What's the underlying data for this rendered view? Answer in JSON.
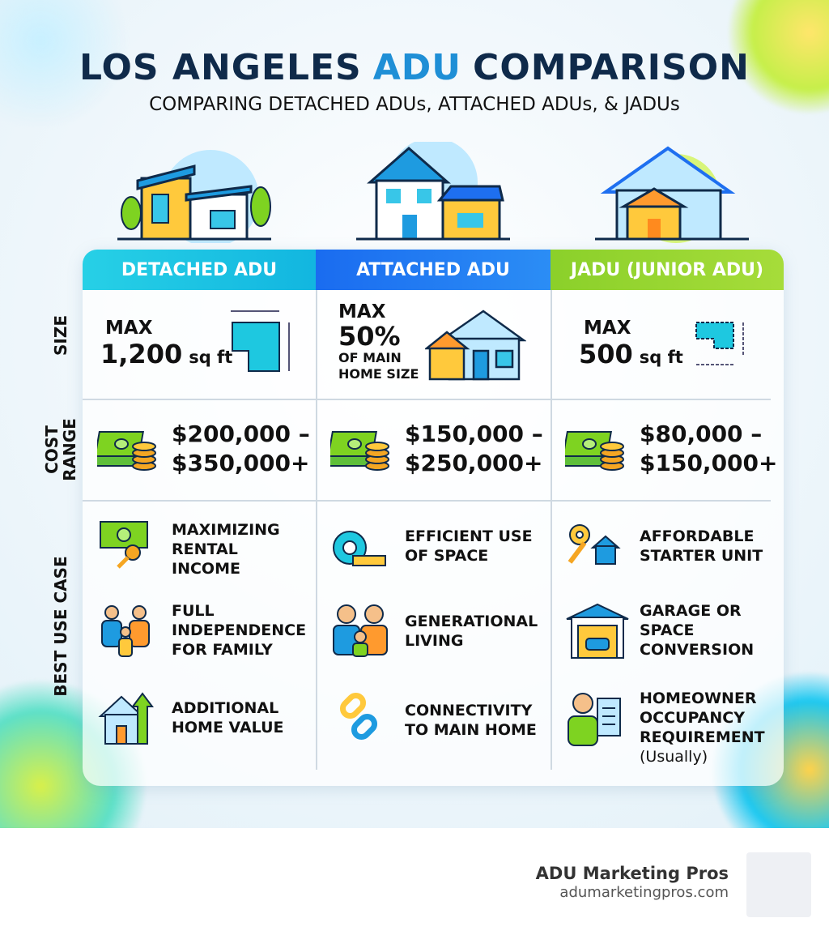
{
  "header": {
    "title": [
      "LOS ANGELES",
      "ADU",
      "COMPARISON"
    ],
    "subtitle": "COMPARING DETACHED ADUs, ATTACHED ADUs, & JADUs"
  },
  "table": {
    "columns": [
      "DETACHED ADU",
      "ATTACHED ADU",
      "JADU (JUNIOR ADU)"
    ],
    "row_labels": [
      "SIZE",
      "COST RANGE",
      "BEST USE CASE"
    ],
    "size": [
      {
        "lead": "MAX",
        "value": "1,200",
        "unit": "sq ft"
      },
      {
        "lead": "MAX",
        "value": "50%",
        "note": "OF MAIN HOME SIZE"
      },
      {
        "lead": "MAX",
        "value": "500",
        "unit": "sq ft"
      }
    ],
    "cost": [
      [
        "$200,000 –",
        "$350,000+"
      ],
      [
        "$150,000 –",
        "$250,000+"
      ],
      [
        "$80,000 –",
        "$150,000+"
      ]
    ],
    "use_cases": [
      [
        {
          "text": "MAXIMIZING RENTAL INCOME"
        },
        {
          "text": "FULL INDEPENDENCE FOR FAMILY"
        },
        {
          "text": "ADDITIONAL HOME VALUE"
        }
      ],
      [
        {
          "text": "EFFICIENT USE OF SPACE"
        },
        {
          "text": "GENERATIONAL LIVING"
        },
        {
          "text": "CONNECTIVITY TO MAIN HOME"
        }
      ],
      [
        {
          "text": "AFFORDABLE STARTER UNIT"
        },
        {
          "text": "GARAGE OR SPACE CONVERSION"
        },
        {
          "text": "HOMEOWNER OCCUPANCY REQUIREMENT",
          "note": "(Usually)"
        }
      ]
    ]
  },
  "footer": {
    "brand": "ADU Marketing Pros",
    "url": "adumarketingpros.com"
  }
}
